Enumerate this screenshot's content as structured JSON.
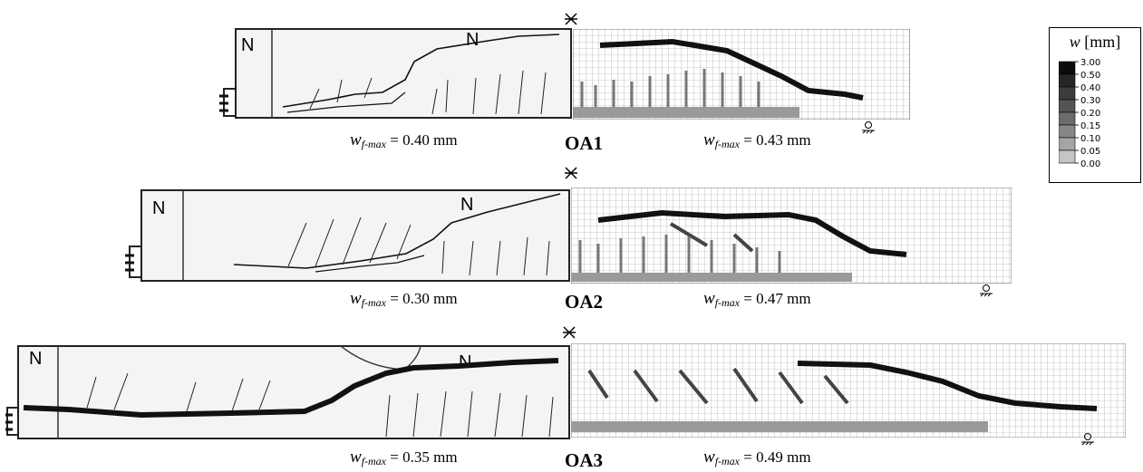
{
  "specimens": [
    {
      "id": "OA1",
      "exp_wmax": "= 0.40 mm",
      "num_wmax": "= 0.43 mm"
    },
    {
      "id": "OA2",
      "exp_wmax": "= 0.30 mm",
      "num_wmax": "= 0.47 mm"
    },
    {
      "id": "OA3",
      "exp_wmax": "= 0.35 mm",
      "num_wmax": "= 0.49 mm"
    }
  ],
  "wsymbol": "w",
  "wsub": "f-max",
  "photo_marks": {
    "n": "N"
  },
  "legend": {
    "symbol": "w",
    "unit": "[mm]",
    "levels": [
      "3.00",
      "0.50",
      "0.40",
      "0.30",
      "0.20",
      "0.15",
      "0.10",
      "0.05",
      "0.00"
    ],
    "colors": [
      "#0c0c0c",
      "#262626",
      "#3c3c3c",
      "#545454",
      "#6c6c6c",
      "#878787",
      "#a5a5a5",
      "#c5c5c5",
      "#ffffff"
    ]
  }
}
